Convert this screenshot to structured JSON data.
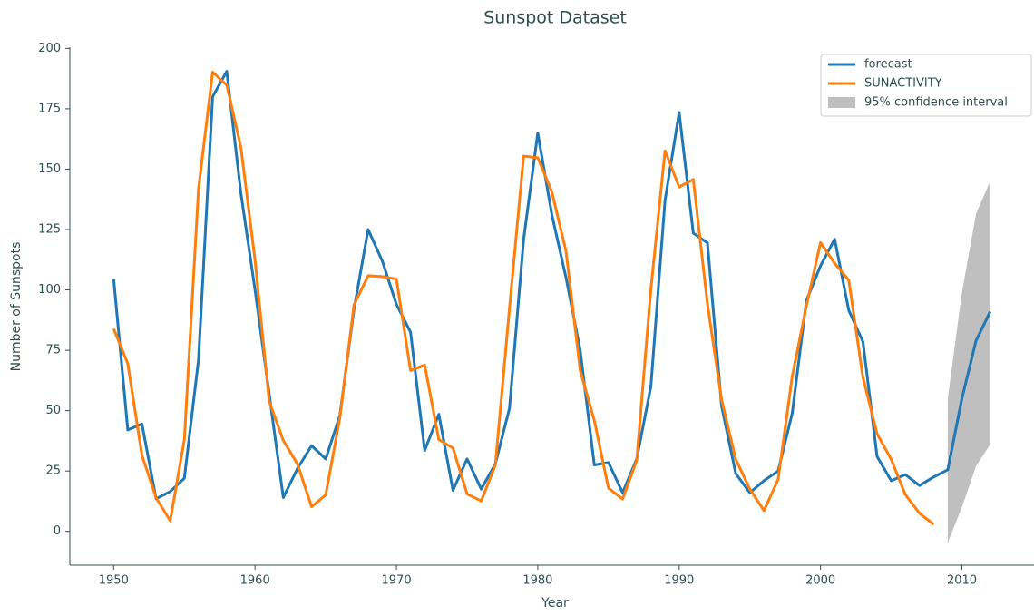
{
  "chart_data": {
    "type": "line",
    "title": "Sunspot Dataset",
    "xlabel": "Year",
    "ylabel": "Number of Sunspots",
    "x": [
      1950,
      1951,
      1952,
      1953,
      1954,
      1955,
      1956,
      1957,
      1958,
      1959,
      1960,
      1961,
      1962,
      1963,
      1964,
      1965,
      1966,
      1967,
      1968,
      1969,
      1970,
      1971,
      1972,
      1973,
      1974,
      1975,
      1976,
      1977,
      1978,
      1979,
      1980,
      1981,
      1982,
      1983,
      1984,
      1985,
      1986,
      1987,
      1988,
      1989,
      1990,
      1991,
      1992,
      1993,
      1994,
      1995,
      1996,
      1997,
      1998,
      1999,
      2000,
      2001,
      2002,
      2003,
      2004,
      2005,
      2006,
      2007,
      2008,
      2009,
      2010,
      2011,
      2012
    ],
    "series": [
      {
        "name": "forecast",
        "color": "#1f77b4",
        "values": [
          104.5,
          42,
          44.5,
          13.5,
          16.5,
          22,
          71,
          180,
          190.5,
          140,
          100,
          57,
          14,
          26,
          35.5,
          30,
          48,
          92,
          125,
          112,
          94,
          82.5,
          33.5,
          48.5,
          17,
          30,
          17.5,
          28,
          51,
          121,
          165,
          131,
          105,
          75,
          27.5,
          28.5,
          16,
          30,
          60,
          137,
          173.5,
          123.5,
          119.5,
          52,
          24,
          16,
          21,
          25,
          49,
          95.5,
          110,
          121,
          91.5,
          78.5,
          31,
          21,
          23.5,
          19,
          22.5,
          25.5,
          55,
          79,
          91
        ]
      },
      {
        "name": "SUNACTIVITY",
        "color": "#ff7f0e",
        "values": [
          83.9,
          69.4,
          31.5,
          13.9,
          4.4,
          38,
          141.7,
          190.2,
          184.8,
          159,
          112.3,
          53.9,
          37.6,
          27.9,
          10.2,
          15.1,
          47,
          93.8,
          105.9,
          105.5,
          104.5,
          66.6,
          68.9,
          38,
          34.5,
          15.5,
          12.6,
          27.5,
          92.5,
          155.4,
          154.7,
          140.5,
          115.9,
          66.6,
          45.9,
          17.9,
          13.4,
          29.4,
          100.2,
          157.6,
          142.6,
          145.7,
          94.3,
          54.6,
          29.9,
          17.5,
          8.6,
          21.5,
          64.3,
          93.3,
          119.6,
          111,
          104,
          63.7,
          40.4,
          29.8,
          15.2,
          7.5,
          2.9,
          null,
          null,
          null,
          null
        ]
      }
    ],
    "band": {
      "name": "95% confidence interval",
      "color": "#bfbfbf",
      "x": [
        2009,
        2010,
        2011,
        2012
      ],
      "lower": [
        -4.6,
        10,
        27,
        36
      ],
      "upper": [
        55,
        99,
        131.5,
        145
      ]
    },
    "xlim": [
      1946.9,
      2015.1
    ],
    "ylim": [
      -14,
      200.5
    ],
    "xticks": [
      1950,
      1960,
      1970,
      1980,
      1990,
      2000,
      2010
    ],
    "yticks": [
      0,
      25,
      50,
      75,
      100,
      125,
      150,
      175,
      200
    ],
    "legend": "upper right"
  }
}
